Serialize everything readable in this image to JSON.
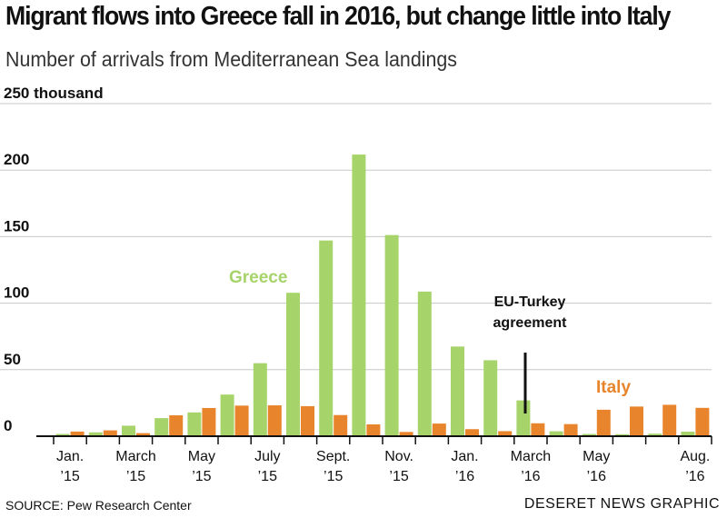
{
  "header": {
    "title": "Migrant flows into Greece fall in 2016, but change little into Italy",
    "subtitle": "Number of arrivals from Mediterranean Sea landings"
  },
  "footer": {
    "source": "SOURCE: Pew Research Center",
    "credit": "DESERET NEWS GRAPHIC"
  },
  "chart_data": {
    "type": "bar",
    "ylim": [
      0,
      250
    ],
    "y_ticks": [
      {
        "value": 250,
        "label": "250 thousand"
      },
      {
        "value": 200,
        "label": "200"
      },
      {
        "value": 150,
        "label": "150"
      },
      {
        "value": 100,
        "label": "100"
      },
      {
        "value": 50,
        "label": "50"
      },
      {
        "value": 0,
        "label": "0"
      }
    ],
    "grid": true,
    "categories": [
      "Jan. 2015",
      "Feb. 2015",
      "Mar. 2015",
      "Apr. 2015",
      "May 2015",
      "Jun. 2015",
      "Jul. 2015",
      "Aug. 2015",
      "Sep. 2015",
      "Oct. 2015",
      "Nov. 2015",
      "Dec. 2015",
      "Jan. 2016",
      "Feb. 2016",
      "Mar. 2016",
      "Apr. 2016",
      "May 2016",
      "Jun. 2016",
      "Jul. 2016",
      "Aug. 2016"
    ],
    "x_tick_labels": [
      {
        "index": 0,
        "line1": "Jan.",
        "line2": "’15"
      },
      {
        "index": 2,
        "line1": "March",
        "line2": "’15"
      },
      {
        "index": 4,
        "line1": "May",
        "line2": "’15"
      },
      {
        "index": 6,
        "line1": "July",
        "line2": "’15"
      },
      {
        "index": 8,
        "line1": "Sept.",
        "line2": "’15"
      },
      {
        "index": 10,
        "line1": "Nov.",
        "line2": "’15"
      },
      {
        "index": 12,
        "line1": "Jan.",
        "line2": "’16"
      },
      {
        "index": 14,
        "line1": "March",
        "line2": "’16"
      },
      {
        "index": 16,
        "line1": "May",
        "line2": "’16"
      },
      {
        "index": 19,
        "line1": "Aug.",
        "line2": "’16"
      }
    ],
    "series": [
      {
        "name": "Greece",
        "color": "#a6d46a",
        "values": [
          1.7,
          2.9,
          7.9,
          13.6,
          17.9,
          31.3,
          54.9,
          107.8,
          147.1,
          211.7,
          151.2,
          108.7,
          67.4,
          57.1,
          26.9,
          3.7,
          1.7,
          1.5,
          1.9,
          3.4
        ]
      },
      {
        "name": "Italy",
        "color": "#e8852c",
        "values": [
          3.5,
          4.4,
          2.3,
          15.7,
          21.2,
          23.0,
          23.2,
          22.6,
          15.9,
          8.9,
          3.2,
          9.5,
          5.3,
          3.8,
          9.7,
          9.1,
          19.9,
          22.3,
          23.6,
          21.3
        ]
      }
    ],
    "annotations": [
      {
        "text_line1": "EU-Turkey",
        "text_line2": "agreement",
        "at_category": "Mar. 2016"
      }
    ]
  }
}
